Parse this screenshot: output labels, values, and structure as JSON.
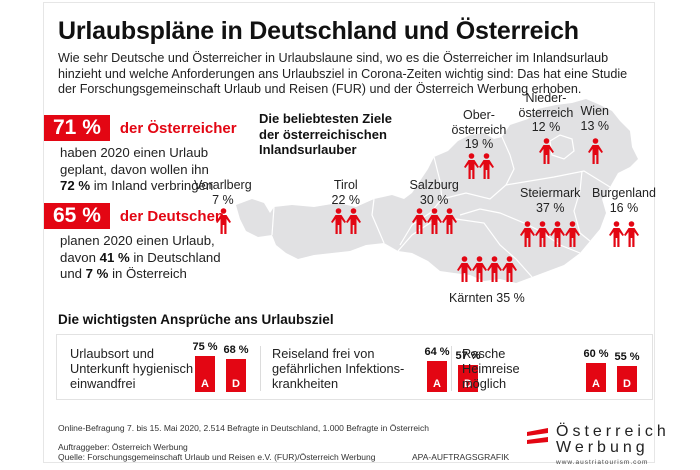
{
  "title": "Urlaubspläne in Deutschland und Österreich",
  "intro": "Wie sehr Deutsche und Österreicher in Urlaubslaune sind, wo es die Österreicher im Inlandsurlaub hinzieht und welche Anforderungen ans Urlaubsziel in Corona-Zeiten wichtig sind: Das hat eine Studie der Forschungsgemeinschaft Urlaub und Reisen (FUR) und der Österreich Werbung erhoben.",
  "stats": [
    {
      "value": "71 %",
      "label": "der Österreicher",
      "lines": [
        {
          "pre": "haben 2020 einen Urlaub",
          "bold": "",
          "post": ""
        },
        {
          "pre": "geplant, davon wollen ihn",
          "bold": "",
          "post": ""
        },
        {
          "pre": "",
          "bold": "72 %",
          "post": " im Inland verbringen"
        }
      ]
    },
    {
      "value": "65 %",
      "label": "der Deutschen",
      "lines": [
        {
          "pre": "planen 2020 einen Urlaub,",
          "bold": "",
          "post": ""
        },
        {
          "pre": "davon ",
          "bold": "41 %",
          "post": " in Deutschland"
        },
        {
          "pre": "und ",
          "bold": "7 %",
          "post": " in Österreich"
        }
      ]
    }
  ],
  "map": {
    "heading": [
      "Die beliebtesten Ziele",
      "der österreichischen",
      "Inlandsurlauber"
    ],
    "icon": "person-icon",
    "icon_color": "#e30613",
    "map_color": "#e1e1e3"
  },
  "chart_data": [
    {
      "type": "pictogram",
      "title": "Die beliebtesten Ziele der österreichischen Inlandsurlauber",
      "unit": "%",
      "categories": [
        "Vorarlberg",
        "Tirol",
        "Salzburg",
        "Oberösterreich",
        "Niederösterreich",
        "Wien",
        "Steiermark",
        "Burgenland",
        "Kärnten"
      ],
      "labels": [
        [
          "Vorarlberg"
        ],
        [
          "Tirol"
        ],
        [
          "Salzburg"
        ],
        [
          "Ober-",
          "österreich"
        ],
        [
          "Nieder-",
          "österreich"
        ],
        [
          "Wien"
        ],
        [
          "Steiermark"
        ],
        [
          "Burgenland"
        ],
        [
          "Kärnten"
        ]
      ],
      "values": [
        7,
        22,
        30,
        19,
        12,
        13,
        37,
        16,
        35
      ],
      "value_labels": [
        "7 %",
        "22 %",
        "30 %",
        "19 %",
        "12 %",
        "13 %",
        "37 %",
        "16 %",
        "35 %"
      ],
      "icon_counts": [
        1,
        2,
        3,
        2,
        1,
        1,
        4,
        2,
        4
      ]
    },
    {
      "type": "bar",
      "title": "Die wichtigsten Ansprüche ans Urlaubsziel",
      "categories": [
        "Urlaubsort und Unterkunft hygienisch einwandfrei",
        "Reiseland frei von gefährlichen Infektionskrankheiten",
        "Rasche Heimreise möglich"
      ],
      "category_lines": [
        [
          "Urlaubsort und",
          "Unterkunft hygienisch",
          "einwandfrei"
        ],
        [
          "Reiseland frei von",
          "gefährlichen Infektions-",
          "krankheiten"
        ],
        [
          "Rasche",
          "Heimreise",
          "möglich"
        ]
      ],
      "series": [
        {
          "name": "A",
          "values": [
            75,
            64,
            60
          ],
          "labels": [
            "75 %",
            "64 %",
            "60 %"
          ]
        },
        {
          "name": "D",
          "values": [
            68,
            57,
            55
          ],
          "labels": [
            "68 %",
            "57 %",
            "55 %"
          ]
        }
      ],
      "bar_color": "#e30613",
      "ylim": [
        0,
        100
      ]
    }
  ],
  "footer": {
    "survey": "Online-Befragung 7. bis 15. Mai 2020, 2.514 Befragte in Deutschland, 1.000 Befragte in Österreich",
    "client": "Auftraggeber: Österreich Werbung",
    "source": "Quelle: Forschungsgemeinschaft Urlaub und Reisen e.V. (FUR)/Österreich Werbung",
    "credit": "APA-AUFTRAGSGRAFIK"
  },
  "logo": {
    "line1": "Österreich",
    "line2": "Werbung",
    "url": "www.austriatourism.com"
  }
}
